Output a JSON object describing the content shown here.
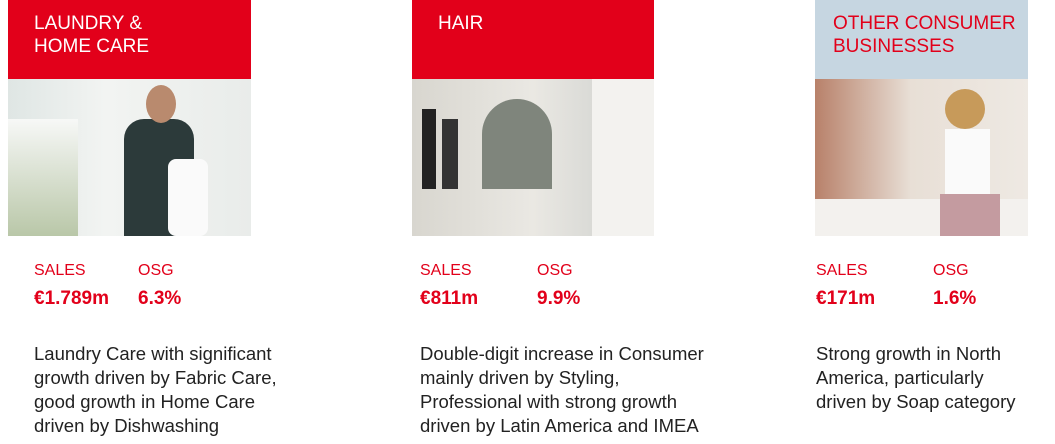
{
  "cards": [
    {
      "title": "LAUNDRY &\nHOME CARE",
      "sales_label": "SALES",
      "sales": "€1.789m",
      "osg_label": "OSG",
      "osg": "6.3%",
      "description": "Laundry Care with significant\ngrowth driven by Fabric Care,\ngood growth in Home Care\ndriven by Dishwashing"
    },
    {
      "title": "HAIR",
      "sales_label": "SALES",
      "sales": "€811m",
      "osg_label": "OSG",
      "osg": "9.9%",
      "description": "Double-digit increase in Consumer\nmainly driven by Styling,\nProfessional with strong growth\ndriven by Latin America and IMEA"
    },
    {
      "title": "OTHER CONSUMER\nBUSINESSES",
      "sales_label": "SALES",
      "sales": "€171m",
      "osg_label": "OSG",
      "osg": "1.6%",
      "description": "Strong growth in North\nAmerica, particularly\ndriven by Soap category"
    }
  ]
}
